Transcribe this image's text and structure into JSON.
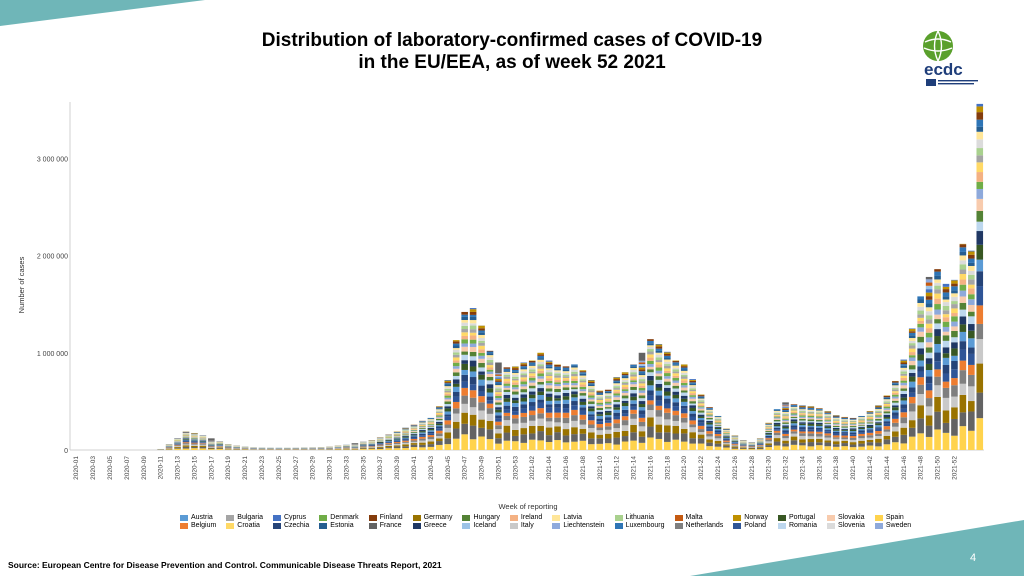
{
  "slide": {
    "title_line1": "Distribution of laboratory-confirmed cases of COVID-19",
    "title_line2": "in the EU/EEA, as of week 52 2021",
    "logo_text": "ecdc",
    "source": "Source: European Centre for Disease Prevention and Control. Communicable Disease Threats Report, 2021",
    "page_number": "4"
  },
  "colors": {
    "accent_teal": "#6fb6b8",
    "gridline": "#e6e6e6",
    "logo_green": "#5aa02c",
    "logo_blue": "#1f3e7a"
  },
  "chart_data": {
    "type": "bar",
    "stacked": true,
    "xlabel": "Week of reporting",
    "ylabel": "Number of cases",
    "ylim": [
      0,
      3600000
    ],
    "y_ticks": [
      0,
      1000000,
      2000000,
      3000000
    ],
    "y_tick_labels": [
      "0",
      "1 000 000",
      "2 000 000",
      "3 000 000"
    ],
    "x_tick_labels": [
      "2020-01",
      "2020-03",
      "2020-05",
      "2020-07",
      "2020-09",
      "2020-11",
      "2020-13",
      "2020-15",
      "2020-17",
      "2020-19",
      "2020-21",
      "2020-23",
      "2020-25",
      "2020-27",
      "2020-29",
      "2020-31",
      "2020-33",
      "2020-35",
      "2020-37",
      "2020-39",
      "2020-41",
      "2020-43",
      "2020-45",
      "2020-47",
      "2020-49",
      "2020-51",
      "2020-53",
      "2021-02",
      "2021-04",
      "2021-06",
      "2021-08",
      "2021-10",
      "2021-12",
      "2021-14",
      "2021-16",
      "2021-18",
      "2021-20",
      "2021-22",
      "2021-24",
      "2021-26",
      "2021-28",
      "2021-30",
      "2021-32",
      "2021-34",
      "2021-36",
      "2021-38",
      "2021-40",
      "2021-42",
      "2021-44",
      "2021-46",
      "2021-48",
      "2021-50",
      "2021-52"
    ],
    "first_week": "2020-01",
    "last_week": "2021-52",
    "weekly_totals": [
      0,
      0,
      0,
      0,
      0,
      0,
      0,
      0,
      0,
      2000,
      15000,
      60000,
      120000,
      190000,
      175000,
      150000,
      120000,
      90000,
      60000,
      45000,
      35000,
      30000,
      27000,
      25000,
      24000,
      24000,
      25000,
      27000,
      28000,
      30000,
      35000,
      45000,
      55000,
      70000,
      85000,
      100000,
      130000,
      160000,
      190000,
      230000,
      260000,
      300000,
      330000,
      450000,
      720000,
      1130000,
      1420000,
      1460000,
      1280000,
      1020000,
      900000,
      850000,
      860000,
      900000,
      920000,
      1000000,
      920000,
      880000,
      860000,
      880000,
      820000,
      720000,
      610000,
      620000,
      750000,
      800000,
      880000,
      1000000,
      1140000,
      1090000,
      1010000,
      920000,
      880000,
      730000,
      570000,
      440000,
      350000,
      220000,
      150000,
      100000,
      80000,
      120000,
      280000,
      420000,
      490000,
      470000,
      460000,
      450000,
      430000,
      400000,
      360000,
      340000,
      330000,
      350000,
      400000,
      460000,
      560000,
      710000,
      930000,
      1250000,
      1580000,
      1780000,
      1860000,
      1710000,
      1750000,
      2120000,
      2050000,
      3560000
    ],
    "category_order": [
      "Spain",
      "France",
      "Germany",
      "Italy",
      "Netherlands",
      "Belgium",
      "Poland",
      "Czechia",
      "Austria",
      "Portugal",
      "Greece",
      "Romania",
      "Hungary",
      "Slovakia",
      "Sweden",
      "Denmark",
      "Ireland",
      "Croatia",
      "Bulgaria",
      "Lithuania",
      "Slovenia",
      "Latvia",
      "Estonia",
      "Luxembourg",
      "Finland",
      "Norway",
      "Cyprus",
      "Iceland",
      "Malta",
      "Liechtenstein"
    ],
    "legend": [
      {
        "name": "Austria",
        "color": "#5b9bd5"
      },
      {
        "name": "Belgium",
        "color": "#ed7d31"
      },
      {
        "name": "Bulgaria",
        "color": "#a5a5a5"
      },
      {
        "name": "Croatia",
        "color": "#ffd966"
      },
      {
        "name": "Cyprus",
        "color": "#4472c4"
      },
      {
        "name": "Czechia",
        "color": "#264478"
      },
      {
        "name": "Denmark",
        "color": "#70ad47"
      },
      {
        "name": "Estonia",
        "color": "#255e91"
      },
      {
        "name": "Finland",
        "color": "#843c0c"
      },
      {
        "name": "France",
        "color": "#636363"
      },
      {
        "name": "Germany",
        "color": "#997300"
      },
      {
        "name": "Greece",
        "color": "#203864"
      },
      {
        "name": "Hungary",
        "color": "#548235"
      },
      {
        "name": "Iceland",
        "color": "#9dc3e6"
      },
      {
        "name": "Ireland",
        "color": "#f4b183"
      },
      {
        "name": "Italy",
        "color": "#c9c9c9"
      },
      {
        "name": "Latvia",
        "color": "#ffe699"
      },
      {
        "name": "Liechtenstein",
        "color": "#8faadc"
      },
      {
        "name": "Lithuania",
        "color": "#a9d18e"
      },
      {
        "name": "Luxembourg",
        "color": "#2e75b6"
      },
      {
        "name": "Malta",
        "color": "#c55a11"
      },
      {
        "name": "Netherlands",
        "color": "#7f7f7f"
      },
      {
        "name": "Norway",
        "color": "#bf9000"
      },
      {
        "name": "Poland",
        "color": "#2f5597"
      },
      {
        "name": "Portugal",
        "color": "#385723"
      },
      {
        "name": "Romania",
        "color": "#bdd7ee"
      },
      {
        "name": "Slovakia",
        "color": "#f8cbad"
      },
      {
        "name": "Slovenia",
        "color": "#dbdbdb"
      },
      {
        "name": "Spain",
        "color": "#ffd34d"
      },
      {
        "name": "Sweden",
        "color": "#8ea9db"
      }
    ],
    "grid": false,
    "legend_position": "bottom"
  }
}
